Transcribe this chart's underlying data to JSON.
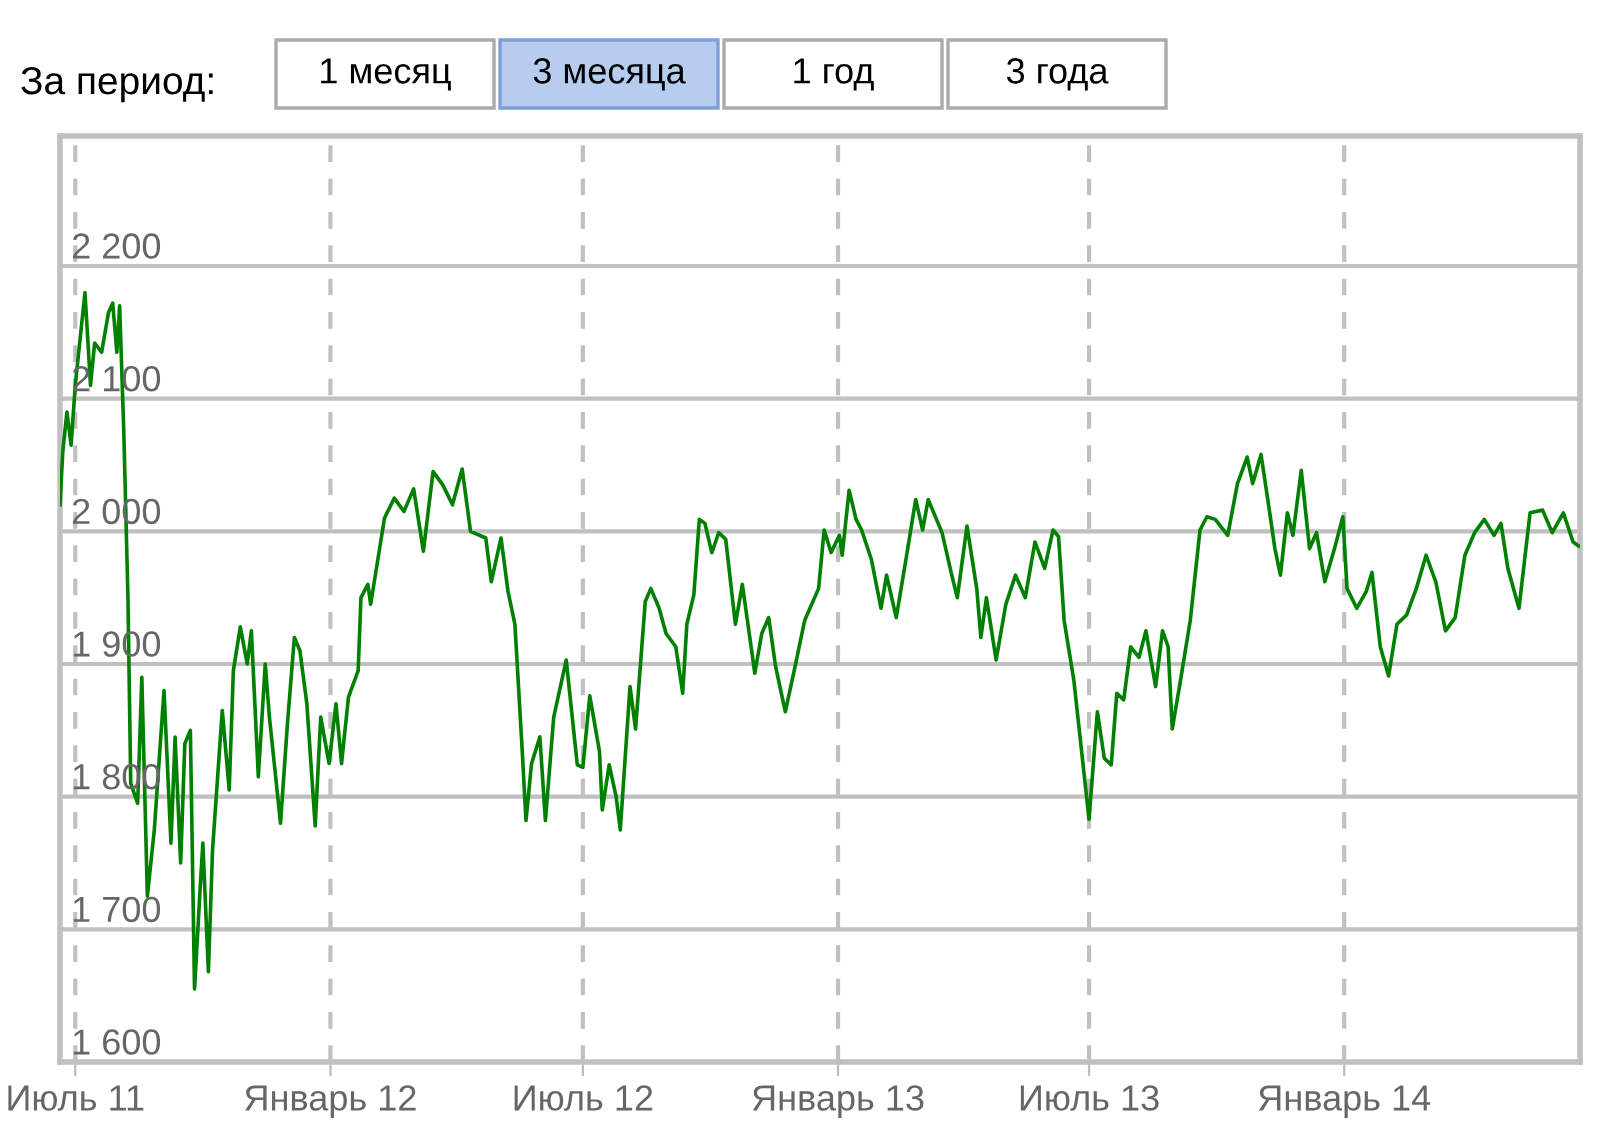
{
  "chart_data": {
    "type": "line",
    "annotations": [
      "За период:",
      "1 месяц",
      "3 месяца",
      "1 год",
      "3 года"
    ],
    "x": [
      "2011-06-20",
      "2011-06-22",
      "2011-06-25",
      "2011-06-28",
      "2011-07-01",
      "2011-07-08",
      "2011-07-12",
      "2011-07-15",
      "2011-07-20",
      "2011-07-25",
      "2011-07-28",
      "2011-07-31",
      "2011-08-02",
      "2011-08-05",
      "2011-08-08",
      "2011-08-10",
      "2011-08-15",
      "2011-08-18",
      "2011-08-22",
      "2011-08-27",
      "2011-09-03",
      "2011-09-08",
      "2011-09-11",
      "2011-09-15",
      "2011-09-18",
      "2011-09-22",
      "2011-09-25",
      "2011-09-29",
      "2011-10-01",
      "2011-10-05",
      "2011-10-08",
      "2011-10-15",
      "2011-10-20",
      "2011-10-23",
      "2011-10-28",
      "2011-11-02",
      "2011-11-05",
      "2011-11-10",
      "2011-11-15",
      "2011-11-18",
      "2011-11-26",
      "2011-12-01",
      "2011-12-06",
      "2011-12-10",
      "2011-12-15",
      "2011-12-21",
      "2011-12-25",
      "2011-12-31",
      "2012-01-05",
      "2012-01-09",
      "2012-01-14",
      "2012-01-21",
      "2012-01-23",
      "2012-01-28",
      "2012-01-30",
      "2012-02-09",
      "2012-02-16",
      "2012-02-23",
      "2012-03-01",
      "2012-03-08",
      "2012-03-15",
      "2012-03-22",
      "2012-03-29",
      "2012-04-05",
      "2012-04-11",
      "2012-04-22",
      "2012-04-26",
      "2012-05-03",
      "2012-05-08",
      "2012-05-13",
      "2012-05-18",
      "2012-05-21",
      "2012-05-25",
      "2012-05-31",
      "2012-06-04",
      "2012-06-10",
      "2012-06-19",
      "2012-06-27",
      "2012-07-01",
      "2012-07-06",
      "2012-07-13",
      "2012-07-15",
      "2012-07-20",
      "2012-07-25",
      "2012-07-28",
      "2012-08-04",
      "2012-08-08",
      "2012-08-15",
      "2012-08-19",
      "2012-08-25",
      "2012-08-30",
      "2012-09-06",
      "2012-09-11",
      "2012-09-14",
      "2012-09-19",
      "2012-09-23",
      "2012-09-27",
      "2012-10-02",
      "2012-10-07",
      "2012-10-12",
      "2012-10-19",
      "2012-10-24",
      "2012-11-02",
      "2012-11-07",
      "2012-11-12",
      "2012-11-17",
      "2012-11-24",
      "2012-12-01",
      "2012-12-08",
      "2012-12-18",
      "2012-12-22",
      "2012-12-27",
      "2013-01-02",
      "2013-01-04",
      "2013-01-09",
      "2013-01-14",
      "2013-01-18",
      "2013-01-25",
      "2013-02-01",
      "2013-02-05",
      "2013-02-12",
      "2013-02-19",
      "2013-02-26",
      "2013-03-03",
      "2013-03-07",
      "2013-03-17",
      "2013-03-24",
      "2013-03-28",
      "2013-04-04",
      "2013-04-11",
      "2013-04-14",
      "2013-04-18",
      "2013-04-25",
      "2013-05-02",
      "2013-05-09",
      "2013-05-16",
      "2013-05-23",
      "2013-05-30",
      "2013-06-05",
      "2013-06-09",
      "2013-06-13",
      "2013-06-20",
      "2013-07-01",
      "2013-07-07",
      "2013-07-12",
      "2013-07-17",
      "2013-07-21",
      "2013-07-26",
      "2013-07-31",
      "2013-08-06",
      "2013-08-11",
      "2013-08-18",
      "2013-08-23",
      "2013-08-27",
      "2013-08-30",
      "2013-09-05",
      "2013-09-12",
      "2013-09-19",
      "2013-09-24",
      "2013-09-30",
      "2013-10-09",
      "2013-10-16",
      "2013-10-23",
      "2013-10-27",
      "2013-11-02",
      "2013-11-08",
      "2013-11-12",
      "2013-11-16",
      "2013-11-21",
      "2013-11-25",
      "2013-12-01",
      "2013-12-07",
      "2013-12-12",
      "2013-12-18",
      "2013-12-25",
      "2013-12-31",
      "2014-01-03",
      "2014-01-10",
      "2014-01-17",
      "2014-01-21",
      "2014-01-27",
      "2014-02-02",
      "2014-02-08",
      "2014-02-15",
      "2014-02-22",
      "2014-03-01",
      "2014-03-08",
      "2014-03-15",
      "2014-03-22",
      "2014-03-29",
      "2014-04-05",
      "2014-04-12",
      "2014-04-19",
      "2014-04-24",
      "2014-04-29",
      "2014-05-07",
      "2014-05-15",
      "2014-05-24",
      "2014-05-31",
      "2014-06-08",
      "2014-06-15",
      "2014-06-19"
    ],
    "series": [
      {
        "color": "#008000",
        "values": [
          2020,
          2060,
          2090,
          2065,
          2110,
          2180,
          2110,
          2142,
          2135,
          2165,
          2172,
          2135,
          2170,
          2075,
          1950,
          1810,
          1795,
          1890,
          1725,
          1775,
          1880,
          1765,
          1845,
          1750,
          1840,
          1850,
          1655,
          1730,
          1765,
          1668,
          1760,
          1865,
          1805,
          1895,
          1928,
          1900,
          1925,
          1815,
          1900,
          1860,
          1780,
          1855,
          1920,
          1910,
          1870,
          1778,
          1860,
          1825,
          1870,
          1825,
          1875,
          1895,
          1950,
          1960,
          1945,
          2010,
          2025,
          2015,
          2032,
          1985,
          2045,
          2035,
          2020,
          2047,
          2000,
          1995,
          1962,
          1995,
          1955,
          1930,
          1840,
          1782,
          1825,
          1845,
          1782,
          1860,
          1903,
          1824,
          1822,
          1876,
          1834,
          1790,
          1824,
          1800,
          1775,
          1883,
          1851,
          1947,
          1957,
          1942,
          1923,
          1913,
          1878,
          1930,
          1952,
          2009,
          2006,
          1984,
          1999,
          1994,
          1930,
          1960,
          1893,
          1923,
          1935,
          1898,
          1864,
          1898,
          1933,
          1957,
          2001,
          1984,
          1997,
          1982,
          2031,
          2009,
          2001,
          1979,
          1942,
          1967,
          1935,
          1979,
          2024,
          2001,
          2024,
          1999,
          1967,
          1950,
          2004,
          1957,
          1920,
          1950,
          1903,
          1945,
          1967,
          1950,
          1992,
          1972,
          2001,
          1996,
          1933,
          1888,
          1783,
          1864,
          1829,
          1824,
          1878,
          1873,
          1913,
          1905,
          1925,
          1883,
          1925,
          1913,
          1851,
          1888,
          1933,
          2001,
          2011,
          2009,
          1997,
          2036,
          2056,
          2036,
          2058,
          2016,
          1987,
          1967,
          2014,
          1997,
          2046,
          1987,
          1999,
          1962,
          1987,
          2011,
          1957,
          1942,
          1955,
          1969,
          1913,
          1891,
          1930,
          1937,
          1957,
          1982,
          1962,
          1925,
          1935,
          1982,
          1999,
          2009,
          1997,
          2006,
          1972,
          1942,
          2014,
          2016,
          1999,
          2014,
          1992,
          1989
        ]
      }
    ],
    "xlim": [
      "2011-06-20",
      "2014-06-20"
    ],
    "xticks": [
      {
        "value": "2011-07-01",
        "label": "Июль 11"
      },
      {
        "value": "2012-01-01",
        "label": "Январь 12"
      },
      {
        "value": "2012-07-01",
        "label": "Июль 12"
      },
      {
        "value": "2013-01-01",
        "label": "Январь 13"
      },
      {
        "value": "2013-07-01",
        "label": "Июль 13"
      },
      {
        "value": "2014-01-01",
        "label": "Январь 14"
      }
    ],
    "ylim": [
      1600,
      2298
    ],
    "yticks": [
      {
        "value": 1600,
        "label": "1 600"
      },
      {
        "value": 1700,
        "label": "1 700"
      },
      {
        "value": 1800,
        "label": "1 800"
      },
      {
        "value": 1900,
        "label": "1 900"
      },
      {
        "value": 2000,
        "label": "2 000"
      },
      {
        "value": 2100,
        "label": "2 100"
      },
      {
        "value": 2200,
        "label": "2 200"
      }
    ],
    "grid": true,
    "legend": false
  }
}
